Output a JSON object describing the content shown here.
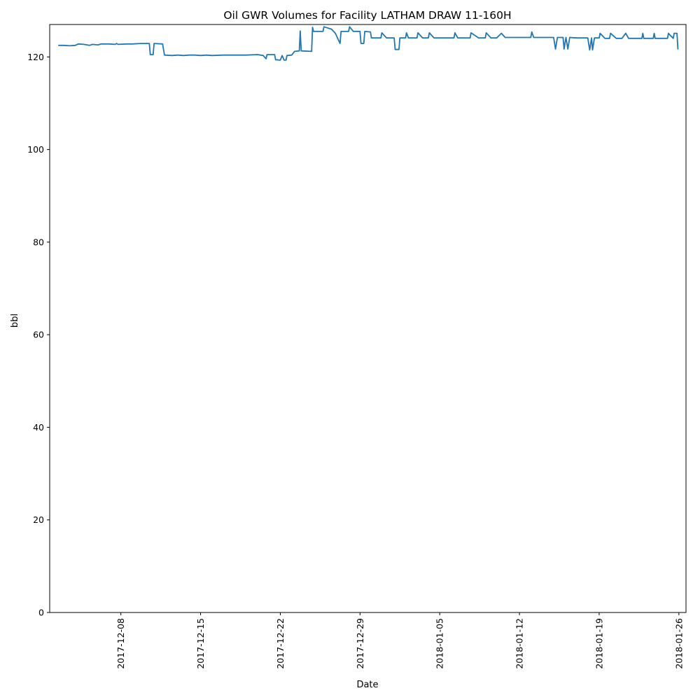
{
  "chart_data": {
    "type": "line",
    "title": "Oil GWR Volumes for Facility LATHAM DRAW 11-160H",
    "xlabel": "Date",
    "ylabel": "bbl",
    "ylim": [
      0,
      127
    ],
    "xlim": [
      "2017-12-01 18:00",
      "2018-01-26 15:00"
    ],
    "grid": false,
    "legend": "none",
    "line_color": "#1f77b4",
    "y_ticks": [
      0,
      20,
      40,
      60,
      80,
      100,
      120
    ],
    "x_ticks": [
      "2017-12-08",
      "2017-12-15",
      "2017-12-22",
      "2017-12-29",
      "2018-01-05",
      "2018-01-12",
      "2018-01-19",
      "2018-01-26"
    ],
    "series": [
      {
        "points": [
          [
            "2017-12-02 12:00",
            122.5
          ],
          [
            "2017-12-03 00:00",
            122.5
          ],
          [
            "2017-12-03 12:00",
            122.4
          ],
          [
            "2017-12-04 00:00",
            122.5
          ],
          [
            "2017-12-04 06:00",
            122.8
          ],
          [
            "2017-12-04 18:00",
            122.7
          ],
          [
            "2017-12-05 06:00",
            122.5
          ],
          [
            "2017-12-05 12:00",
            122.7
          ],
          [
            "2017-12-06 00:00",
            122.6
          ],
          [
            "2017-12-06 06:00",
            122.8
          ],
          [
            "2017-12-07 00:00",
            122.8
          ],
          [
            "2017-12-07 12:00",
            122.7
          ],
          [
            "2017-12-07 15:00",
            122.9
          ],
          [
            "2017-12-07 18:00",
            122.7
          ],
          [
            "2017-12-08 12:00",
            122.8
          ],
          [
            "2017-12-09 00:00",
            122.8
          ],
          [
            "2017-12-09 18:00",
            122.9
          ],
          [
            "2017-12-10 12:00",
            122.9
          ],
          [
            "2017-12-10 14:00",
            120.5
          ],
          [
            "2017-12-10 20:00",
            120.5
          ],
          [
            "2017-12-10 22:00",
            122.9
          ],
          [
            "2017-12-11 16:00",
            122.8
          ],
          [
            "2017-12-11 18:00",
            121.5
          ],
          [
            "2017-12-11 20:00",
            120.4
          ],
          [
            "2017-12-12 12:00",
            120.3
          ],
          [
            "2017-12-13 00:00",
            120.4
          ],
          [
            "2017-12-13 12:00",
            120.3
          ],
          [
            "2017-12-14 00:00",
            120.4
          ],
          [
            "2017-12-14 12:00",
            120.4
          ],
          [
            "2017-12-15 00:00",
            120.3
          ],
          [
            "2017-12-15 12:00",
            120.4
          ],
          [
            "2017-12-16 00:00",
            120.3
          ],
          [
            "2017-12-17 00:00",
            120.4
          ],
          [
            "2017-12-18 00:00",
            120.4
          ],
          [
            "2017-12-19 00:00",
            120.4
          ],
          [
            "2017-12-20 00:00",
            120.5
          ],
          [
            "2017-12-20 12:00",
            120.3
          ],
          [
            "2017-12-20 18:00",
            119.6
          ],
          [
            "2017-12-20 20:00",
            120.5
          ],
          [
            "2017-12-21 12:00",
            120.5
          ],
          [
            "2017-12-21 14:00",
            119.4
          ],
          [
            "2017-12-22 00:00",
            119.3
          ],
          [
            "2017-12-22 04:00",
            120.3
          ],
          [
            "2017-12-22 08:00",
            119.3
          ],
          [
            "2017-12-22 12:00",
            119.3
          ],
          [
            "2017-12-22 14:00",
            120.3
          ],
          [
            "2017-12-23 00:00",
            120.4
          ],
          [
            "2017-12-23 06:00",
            121.2
          ],
          [
            "2017-12-23 16:00",
            121.3
          ],
          [
            "2017-12-23 18:00",
            125.6
          ],
          [
            "2017-12-23 20:00",
            121.3
          ],
          [
            "2017-12-24 18:00",
            121.2
          ],
          [
            "2017-12-24 20:00",
            126.4
          ],
          [
            "2017-12-24 22:00",
            125.5
          ],
          [
            "2017-12-25 18:00",
            125.5
          ],
          [
            "2017-12-25 20:00",
            126.5
          ],
          [
            "2017-12-26 12:00",
            126.0
          ],
          [
            "2017-12-26 20:00",
            125.1
          ],
          [
            "2017-12-27 06:00",
            122.9
          ],
          [
            "2017-12-27 08:00",
            125.5
          ],
          [
            "2017-12-28 00:00",
            125.5
          ],
          [
            "2017-12-28 02:00",
            126.5
          ],
          [
            "2017-12-28 10:00",
            125.5
          ],
          [
            "2017-12-29 00:00",
            125.5
          ],
          [
            "2017-12-29 02:00",
            122.9
          ],
          [
            "2017-12-29 08:00",
            122.9
          ],
          [
            "2017-12-29 10:00",
            125.5
          ],
          [
            "2017-12-29 22:00",
            125.4
          ],
          [
            "2017-12-30 00:00",
            124.1
          ],
          [
            "2017-12-30 20:00",
            124.1
          ],
          [
            "2017-12-30 22:00",
            125.2
          ],
          [
            "2017-12-31 08:00",
            124.1
          ],
          [
            "2018-01-01 00:00",
            124.1
          ],
          [
            "2018-01-01 02:00",
            121.6
          ],
          [
            "2018-01-01 10:00",
            121.6
          ],
          [
            "2018-01-01 12:00",
            124.1
          ],
          [
            "2018-01-02 00:00",
            124.1
          ],
          [
            "2018-01-02 02:00",
            125.2
          ],
          [
            "2018-01-02 06:00",
            124.1
          ],
          [
            "2018-01-03 00:00",
            124.1
          ],
          [
            "2018-01-03 02:00",
            125.2
          ],
          [
            "2018-01-03 12:00",
            124.1
          ],
          [
            "2018-01-04 00:00",
            124.1
          ],
          [
            "2018-01-04 02:00",
            125.2
          ],
          [
            "2018-01-04 12:00",
            124.1
          ],
          [
            "2018-01-06 06:00",
            124.1
          ],
          [
            "2018-01-06 08:00",
            125.2
          ],
          [
            "2018-01-06 14:00",
            124.1
          ],
          [
            "2018-01-07 16:00",
            124.1
          ],
          [
            "2018-01-07 18:00",
            125.2
          ],
          [
            "2018-01-08 10:00",
            124.1
          ],
          [
            "2018-01-09 00:00",
            124.1
          ],
          [
            "2018-01-09 02:00",
            125.2
          ],
          [
            "2018-01-09 12:00",
            124.1
          ],
          [
            "2018-01-10 00:00",
            124.1
          ],
          [
            "2018-01-10 10:00",
            125.1
          ],
          [
            "2018-01-10 18:00",
            124.2
          ],
          [
            "2018-01-11 04:00",
            124.2
          ],
          [
            "2018-01-13 00:00",
            124.2
          ],
          [
            "2018-01-13 02:00",
            125.4
          ],
          [
            "2018-01-13 06:00",
            124.2
          ],
          [
            "2018-01-15 00:00",
            124.2
          ],
          [
            "2018-01-15 04:00",
            121.7
          ],
          [
            "2018-01-15 08:00",
            124.2
          ],
          [
            "2018-01-15 20:00",
            124.2
          ],
          [
            "2018-01-15 22:00",
            121.7
          ],
          [
            "2018-01-16 02:00",
            124.2
          ],
          [
            "2018-01-16 06:00",
            121.7
          ],
          [
            "2018-01-16 10:00",
            124.2
          ],
          [
            "2018-01-17 00:00",
            124.1
          ],
          [
            "2018-01-18 00:00",
            124.1
          ],
          [
            "2018-01-18 04:00",
            121.5
          ],
          [
            "2018-01-18 08:00",
            124.1
          ],
          [
            "2018-01-18 10:00",
            121.5
          ],
          [
            "2018-01-18 14:00",
            124.1
          ],
          [
            "2018-01-19 00:00",
            124.1
          ],
          [
            "2018-01-19 02:00",
            125.1
          ],
          [
            "2018-01-19 12:00",
            124.0
          ],
          [
            "2018-01-19 22:00",
            124.0
          ],
          [
            "2018-01-20 00:00",
            125.1
          ],
          [
            "2018-01-20 12:00",
            124.0
          ],
          [
            "2018-01-21 00:00",
            124.0
          ],
          [
            "2018-01-21 08:00",
            125.1
          ],
          [
            "2018-01-21 14:00",
            124.0
          ],
          [
            "2018-01-22 18:00",
            124.0
          ],
          [
            "2018-01-22 20:00",
            125.1
          ],
          [
            "2018-01-22 22:00",
            124.0
          ],
          [
            "2018-01-23 18:00",
            124.0
          ],
          [
            "2018-01-23 20:00",
            125.1
          ],
          [
            "2018-01-23 22:00",
            124.0
          ],
          [
            "2018-01-25 00:00",
            124.0
          ],
          [
            "2018-01-25 02:00",
            125.1
          ],
          [
            "2018-01-25 12:00",
            124.0
          ],
          [
            "2018-01-25 14:00",
            125.1
          ],
          [
            "2018-01-25 20:00",
            125.1
          ],
          [
            "2018-01-25 22:00",
            121.6
          ]
        ]
      }
    ]
  }
}
